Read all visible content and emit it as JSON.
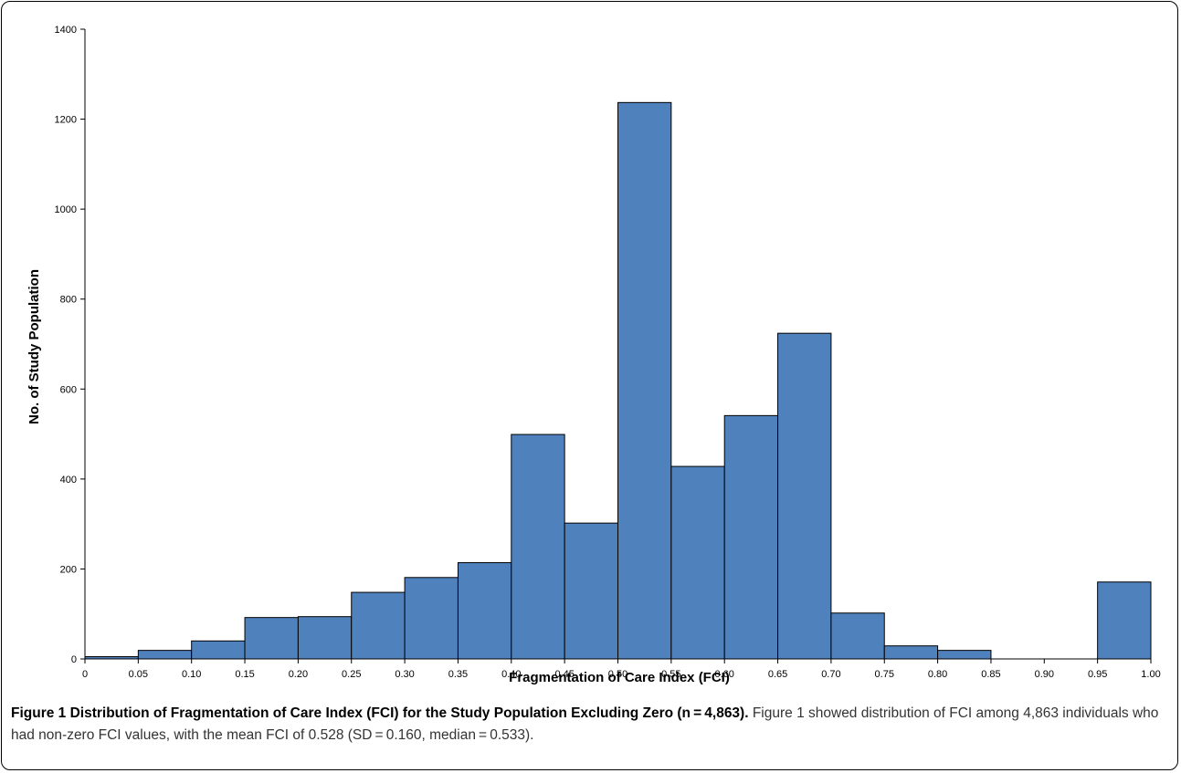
{
  "chart_data": {
    "type": "bar",
    "title": "",
    "xlabel": "Fragmentation of Care Index (FCI)",
    "ylabel": "No. of Study Population",
    "ylim": [
      0,
      1400
    ],
    "yticks": [
      0,
      200,
      400,
      600,
      800,
      1000,
      1200,
      1400
    ],
    "xtick_labels": [
      "0",
      "0.05",
      "0.10",
      "0.15",
      "0.20",
      "0.25",
      "0.30",
      "0.35",
      "0.40",
      "0.45",
      "0.50",
      "0.55",
      "0.60",
      "0.65",
      "0.70",
      "0.75",
      "0.80",
      "0.85",
      "0.90",
      "0.95",
      "1.00"
    ],
    "bins": [
      {
        "start": 0.0,
        "end": 0.05,
        "value": 5
      },
      {
        "start": 0.05,
        "end": 0.1,
        "value": 19
      },
      {
        "start": 0.1,
        "end": 0.15,
        "value": 40
      },
      {
        "start": 0.15,
        "end": 0.2,
        "value": 92
      },
      {
        "start": 0.2,
        "end": 0.25,
        "value": 94
      },
      {
        "start": 0.25,
        "end": 0.3,
        "value": 148
      },
      {
        "start": 0.3,
        "end": 0.35,
        "value": 181
      },
      {
        "start": 0.35,
        "end": 0.4,
        "value": 214
      },
      {
        "start": 0.4,
        "end": 0.45,
        "value": 499
      },
      {
        "start": 0.45,
        "end": 0.5,
        "value": 302
      },
      {
        "start": 0.5,
        "end": 0.55,
        "value": 1237
      },
      {
        "start": 0.55,
        "end": 0.6,
        "value": 428
      },
      {
        "start": 0.6,
        "end": 0.65,
        "value": 541
      },
      {
        "start": 0.65,
        "end": 0.7,
        "value": 724
      },
      {
        "start": 0.7,
        "end": 0.75,
        "value": 102
      },
      {
        "start": 0.75,
        "end": 0.8,
        "value": 29
      },
      {
        "start": 0.8,
        "end": 0.85,
        "value": 19
      },
      {
        "start": 0.85,
        "end": 0.9,
        "value": 0
      },
      {
        "start": 0.9,
        "end": 0.95,
        "value": 0
      },
      {
        "start": 0.95,
        "end": 1.0,
        "value": 171
      }
    ],
    "bar_color": "#4f81bd",
    "grid": false,
    "legend": "none"
  },
  "caption": {
    "lead": "Figure 1 Distribution of Fragmentation of Care Index (FCI) for the Study Population Excluding Zero (n = 4,863).",
    "body": " Figure 1 showed distribution of FCI among 4,863 individuals who had non-zero FCI values, with the mean FCI of 0.528 (SD = 0.160, median = 0.533)."
  }
}
